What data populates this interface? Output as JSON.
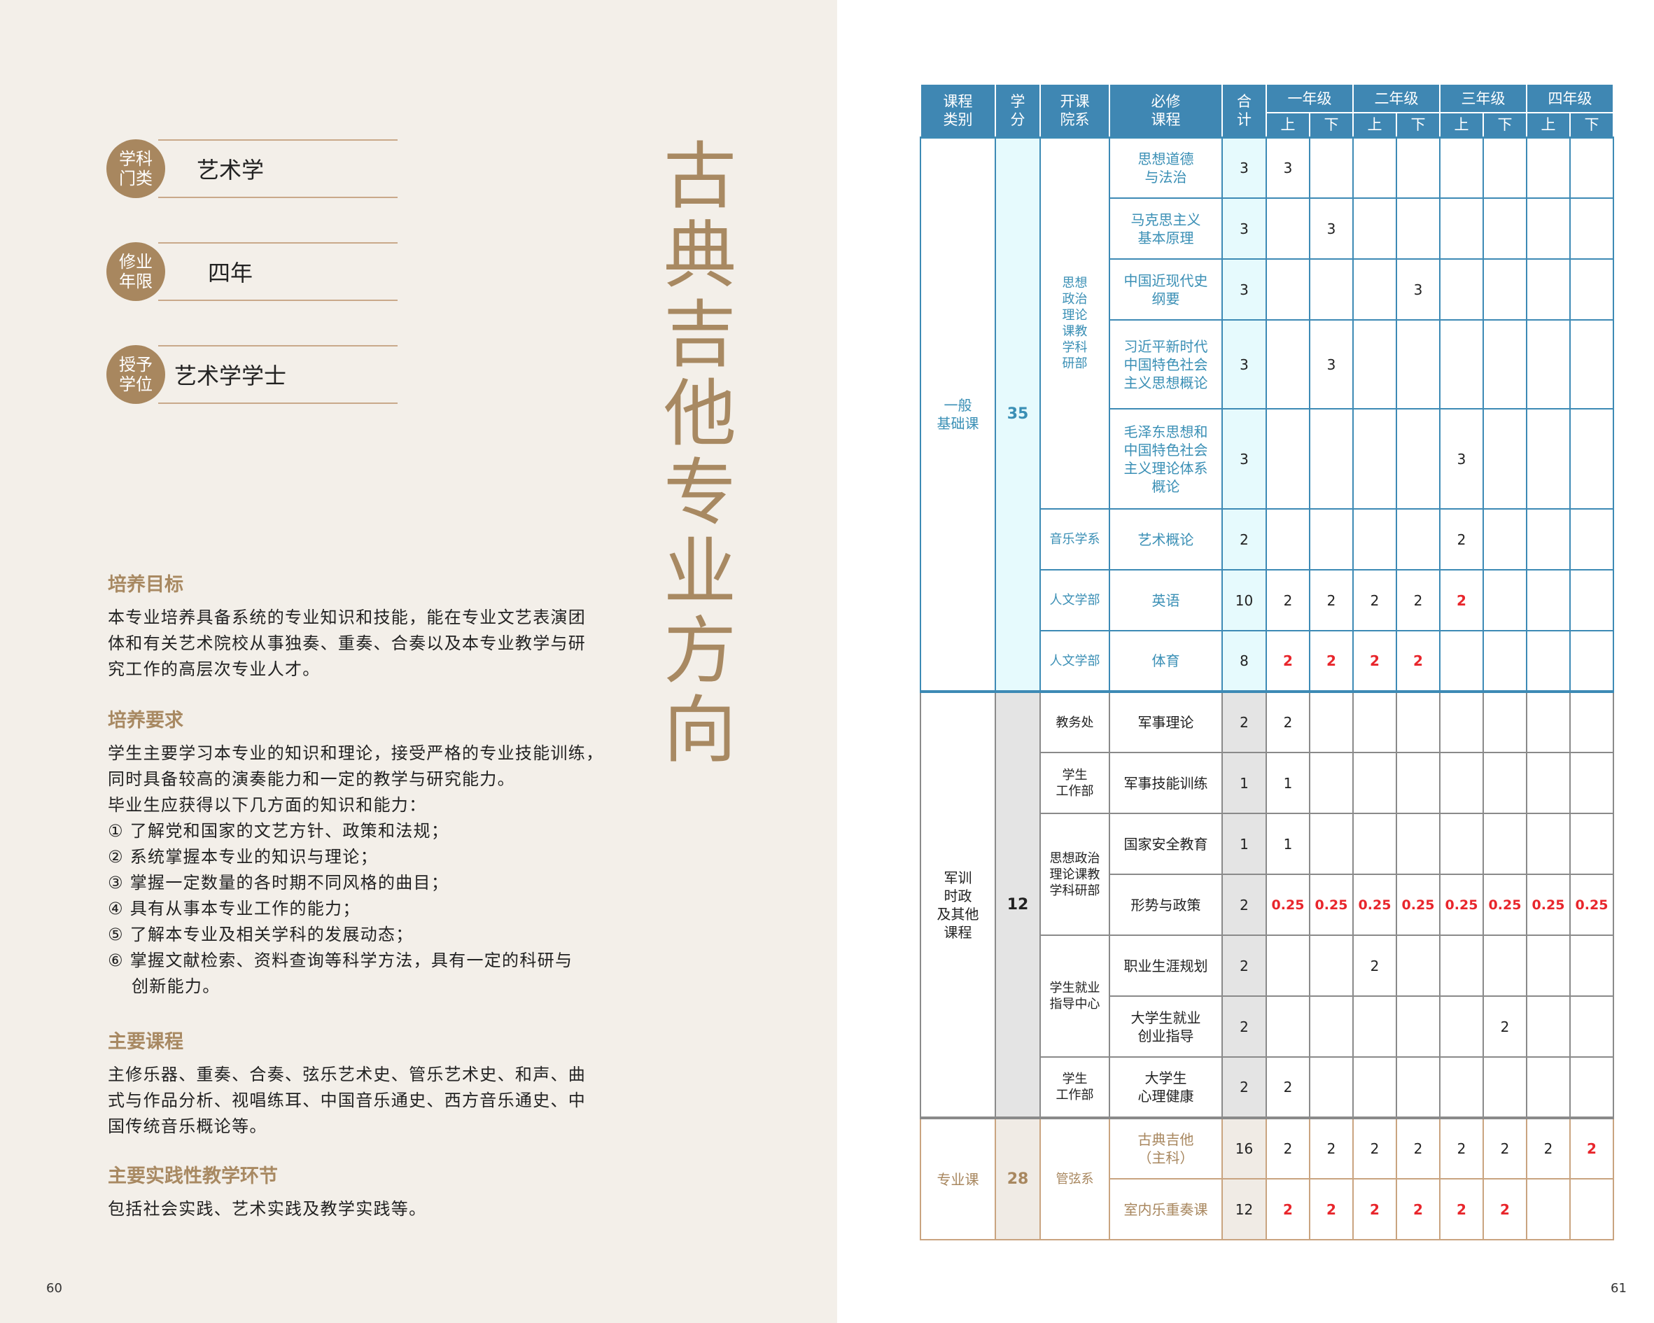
{
  "left_page": {
    "badges": [
      {
        "label": "学科\n门类",
        "value": "艺术学"
      },
      {
        "label": "修业\n年限",
        "value": "四年"
      },
      {
        "label": "授予\n学位",
        "value": "艺术学学士"
      }
    ],
    "vertical_title": [
      "古",
      "典",
      "吉",
      "他",
      "专",
      "业",
      "方",
      "向"
    ],
    "sections": [
      {
        "heading": "培养目标",
        "lines": [
          "本专业培养具备系统的专业知识和技能，能在专业文艺表演团",
          "体和有关艺术院校从事独奏、重奏、合奏以及本专业教学与研",
          "究工作的高层次专业人才。"
        ]
      },
      {
        "heading": "培养要求",
        "lines": [
          "学生主要学习本专业的知识和理论，接受严格的专业技能训练，",
          "同时具备较高的演奏能力和一定的教学与研究能力。",
          "毕业生应获得以下几方面的知识和能力：",
          "① 了解党和国家的文艺方针、政策和法规；",
          "② 系统掌握本专业的知识与理论；",
          "③ 掌握一定数量的各时期不同风格的曲目；",
          "④ 具有从事本专业工作的能力；",
          "⑤ 了解本专业及相关学科的发展动态；",
          "⑥ 掌握文献检索、资料查询等科学方法，具有一定的科研与",
          "创新能力。"
        ]
      },
      {
        "heading": "主要课程",
        "lines": [
          "主修乐器、重奏、合奏、弦乐艺术史、管乐艺术史、和声、曲",
          "式与作品分析、视唱练耳、中国音乐通史、西方音乐通史、中",
          "国传统音乐概论等。"
        ]
      },
      {
        "heading": "主要实践性教学环节",
        "lines": [
          "包括社会实践、艺术实践及教学实践等。"
        ]
      }
    ],
    "page_number": "60"
  },
  "right_page": {
    "page_number": "61",
    "table": {
      "headers": {
        "category": "课程\n类别",
        "credits": "学\n分",
        "department": "开课\n院系",
        "course": "必修\n课程",
        "total": "合\n计",
        "grades": [
          "一年级",
          "二年级",
          "三年级",
          "四年级"
        ],
        "terms": [
          "上",
          "下",
          "上",
          "下",
          "上",
          "下",
          "上",
          "下"
        ]
      },
      "colors": {
        "header": "#3f87b3",
        "general": "#3a8fb5",
        "other": "#8a8a8a",
        "major": "#a8875f",
        "highlight": "#e8262c"
      },
      "sections": [
        {
          "style": "blue",
          "category": "一般\n基础课",
          "credits": "35",
          "rows": [
            {
              "dept": "思想\n政治\n理论\n课教\n学科\n研部",
              "dept_span": 5,
              "course": "思想道德\n与法治",
              "total": "3",
              "sems": [
                "3",
                "",
                "",
                "",
                "",
                "",
                "",
                ""
              ],
              "red": []
            },
            {
              "course": "马克思主义\n基本原理",
              "total": "3",
              "sems": [
                "",
                "3",
                "",
                "",
                "",
                "",
                "",
                ""
              ],
              "red": []
            },
            {
              "course": "中国近现代史\n纲要",
              "total": "3",
              "sems": [
                "",
                "",
                "",
                "3",
                "",
                "",
                "",
                ""
              ],
              "red": []
            },
            {
              "course": "习近平新时代\n中国特色社会\n主义思想概论",
              "total": "3",
              "sems": [
                "",
                "3",
                "",
                "",
                "",
                "",
                "",
                ""
              ],
              "red": []
            },
            {
              "course": "毛泽东思想和\n中国特色社会\n主义理论体系\n概论",
              "total": "3",
              "sems": [
                "",
                "",
                "",
                "",
                "3",
                "",
                "",
                ""
              ],
              "red": []
            },
            {
              "dept": "音乐学系",
              "dept_span": 1,
              "course": "艺术概论",
              "total": "2",
              "sems": [
                "",
                "",
                "",
                "",
                "2",
                "",
                "",
                ""
              ],
              "red": []
            },
            {
              "dept": "人文学部",
              "dept_span": 1,
              "course": "英语",
              "total": "10",
              "sems": [
                "2",
                "2",
                "2",
                "2",
                "2",
                "",
                "",
                ""
              ],
              "red": [
                4
              ]
            },
            {
              "dept": "人文学部",
              "dept_span": 1,
              "course": "体育",
              "total": "8",
              "sems": [
                "2",
                "2",
                "2",
                "2",
                "",
                "",
                "",
                ""
              ],
              "red": [
                0,
                1,
                2,
                3
              ]
            }
          ]
        },
        {
          "style": "gray",
          "category": "军训\n时政\n及其他\n课程",
          "credits": "12",
          "rows": [
            {
              "dept": "教务处",
              "dept_span": 1,
              "course": "军事理论",
              "total": "2",
              "sems": [
                "2",
                "",
                "",
                "",
                "",
                "",
                "",
                ""
              ],
              "red": []
            },
            {
              "dept": "学生\n工作部",
              "dept_span": 1,
              "course": "军事技能训练",
              "total": "1",
              "sems": [
                "1",
                "",
                "",
                "",
                "",
                "",
                "",
                ""
              ],
              "red": []
            },
            {
              "dept": "思想政治\n理论课教\n学科研部",
              "dept_span": 2,
              "course": "国家安全教育",
              "total": "1",
              "sems": [
                "1",
                "",
                "",
                "",
                "",
                "",
                "",
                ""
              ],
              "red": []
            },
            {
              "course": "形势与政策",
              "total": "2",
              "sems": [
                "0.25",
                "0.25",
                "0.25",
                "0.25",
                "0.25",
                "0.25",
                "0.25",
                "0.25"
              ],
              "red": [
                0,
                1,
                2,
                3,
                4,
                5,
                6,
                7
              ]
            },
            {
              "dept": "学生就业\n指导中心",
              "dept_span": 2,
              "course": "职业生涯规划",
              "total": "2",
              "sems": [
                "",
                "",
                "2",
                "",
                "",
                "",
                "",
                ""
              ],
              "red": []
            },
            {
              "course": "大学生就业\n创业指导",
              "total": "2",
              "sems": [
                "",
                "",
                "",
                "",
                "",
                "2",
                "",
                ""
              ],
              "red": []
            },
            {
              "dept": "学生\n工作部",
              "dept_span": 1,
              "course": "大学生\n心理健康",
              "total": "2",
              "sems": [
                "2",
                "",
                "",
                "",
                "",
                "",
                "",
                ""
              ],
              "red": []
            }
          ]
        },
        {
          "style": "tan",
          "category": "专业课",
          "credits": "28",
          "rows": [
            {
              "dept": "管弦系",
              "dept_span": 2,
              "course": "古典吉他\n（主科）",
              "total": "16",
              "sems": [
                "2",
                "2",
                "2",
                "2",
                "2",
                "2",
                "2",
                "2"
              ],
              "red": [
                7
              ]
            },
            {
              "course": "室内乐重奏课",
              "total": "12",
              "sems": [
                "2",
                "2",
                "2",
                "2",
                "2",
                "2",
                "",
                ""
              ],
              "red": [
                0,
                1,
                2,
                3,
                4,
                5
              ]
            }
          ]
        }
      ]
    }
  }
}
